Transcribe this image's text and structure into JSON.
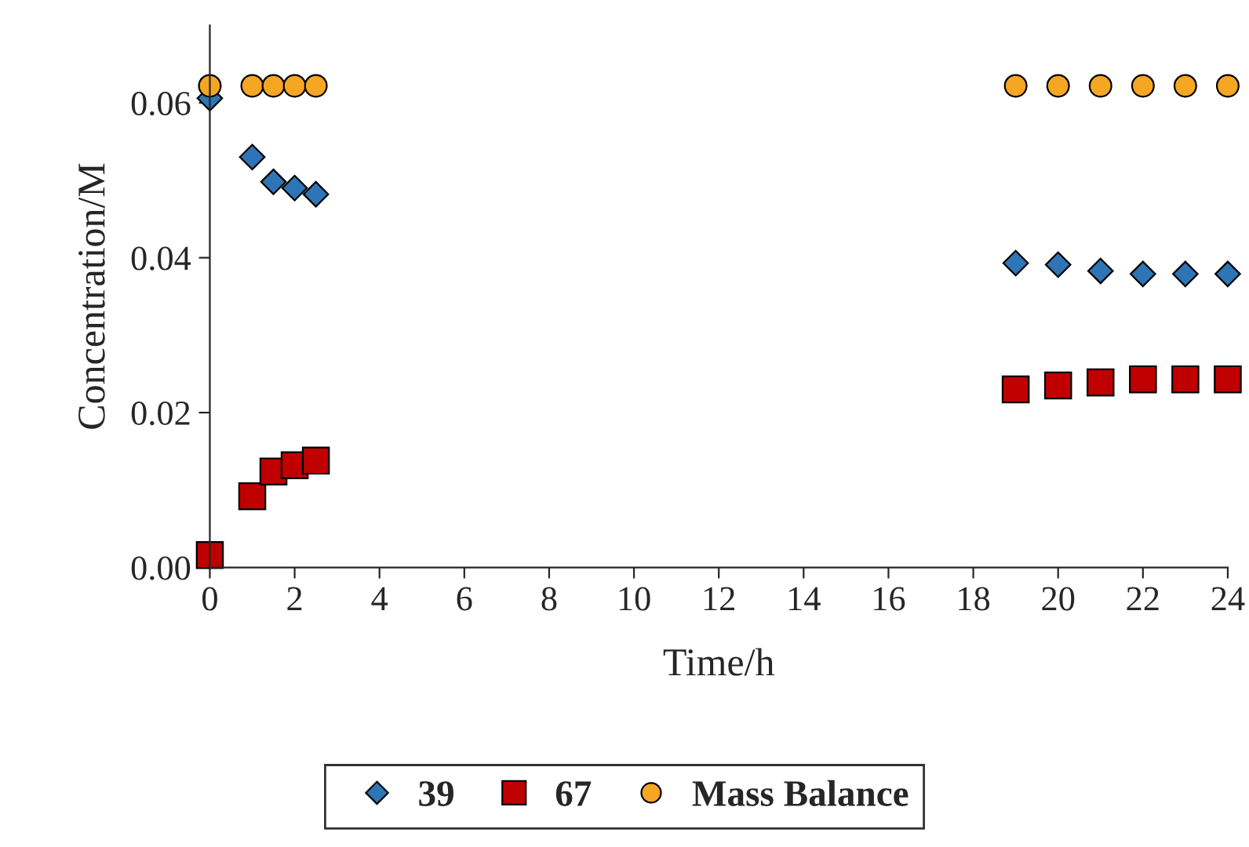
{
  "chart_data": {
    "type": "scatter",
    "xlabel": "Time/h",
    "ylabel": "Concentration/M",
    "xlim": [
      0,
      24
    ],
    "xticks": [
      0,
      2,
      4,
      6,
      8,
      10,
      12,
      14,
      16,
      18,
      20,
      22,
      24
    ],
    "ylim": [
      0,
      0.07
    ],
    "yticks": [
      {
        "value": 0,
        "label": "0.00"
      },
      {
        "value": 0.02,
        "label": "0.02"
      },
      {
        "value": 0.04,
        "label": "0.04"
      },
      {
        "value": 0.06,
        "label": "0.06"
      }
    ],
    "grid": false,
    "legend": "bottom",
    "series": [
      {
        "name": "39",
        "color": "#2e75b6",
        "marker": "diamond",
        "x": [
          0,
          1,
          1.5,
          2,
          2.5,
          19,
          20,
          21,
          22,
          23,
          24
        ],
        "values": [
          0.0606,
          0.053,
          0.0498,
          0.049,
          0.0482,
          0.0393,
          0.0391,
          0.0383,
          0.0379,
          0.0379,
          0.0379
        ]
      },
      {
        "name": "67",
        "color": "#c00000",
        "marker": "square",
        "x": [
          0,
          1,
          1.5,
          2,
          2.5,
          19,
          20,
          21,
          22,
          23,
          24
        ],
        "values": [
          0.0016,
          0.0092,
          0.0124,
          0.0132,
          0.0138,
          0.023,
          0.0235,
          0.0239,
          0.0243,
          0.0243,
          0.0243
        ]
      },
      {
        "name": "Mass Balance",
        "color": "#f5a623",
        "marker": "circle",
        "x": [
          0,
          1,
          1.5,
          2,
          2.5,
          19,
          20,
          21,
          22,
          23,
          24
        ],
        "values": [
          0.0622,
          0.0622,
          0.0622,
          0.0622,
          0.0622,
          0.0622,
          0.0622,
          0.0622,
          0.0622,
          0.0622,
          0.0622
        ]
      }
    ]
  }
}
